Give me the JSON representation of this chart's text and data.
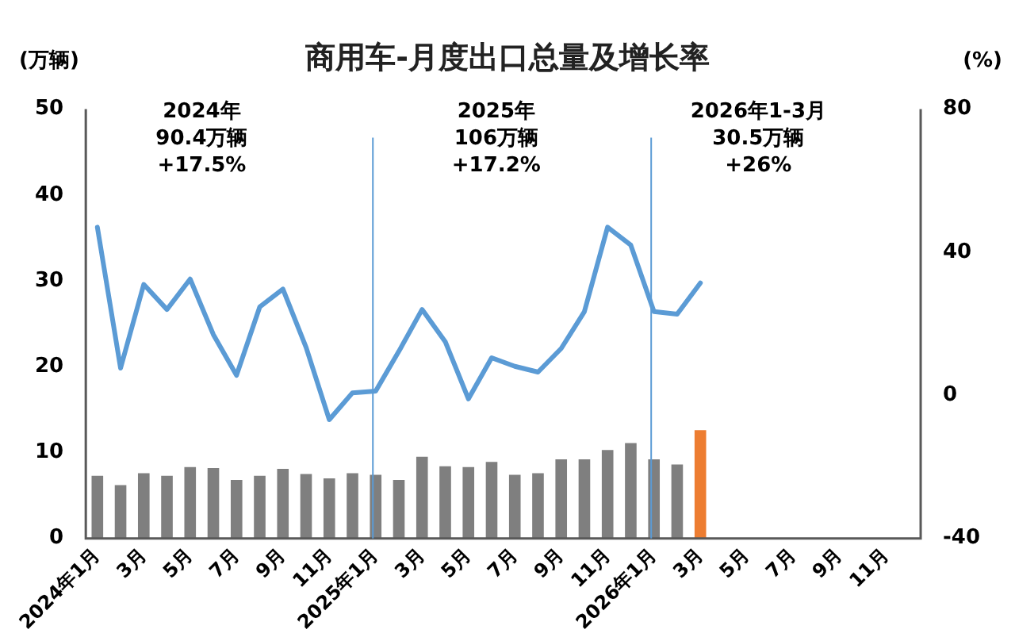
{
  "chart_data": {
    "type": "bar",
    "title": "商用车-月度出口总量及增长率",
    "ylabel": "(万辆)",
    "y2label": "(%)",
    "categories": [
      "2024年1月",
      null,
      "3月",
      null,
      "5月",
      null,
      "7月",
      null,
      "9月",
      null,
      "11月",
      null,
      "2025年1月",
      null,
      "3月",
      null,
      "5月",
      null,
      "7月",
      null,
      "9月",
      null,
      "11月",
      null,
      "2026年1月",
      null,
      "3月",
      null,
      "5月",
      null,
      "7月",
      null,
      "9月",
      null,
      "11月",
      null
    ],
    "series": [
      {
        "colors": [
          "#7f7f7f",
          "#7f7f7f",
          "#7f7f7f",
          "#7f7f7f",
          "#7f7f7f",
          "#7f7f7f",
          "#7f7f7f",
          "#7f7f7f",
          "#7f7f7f",
          "#7f7f7f",
          "#7f7f7f",
          "#7f7f7f",
          "#7f7f7f",
          "#7f7f7f",
          "#7f7f7f",
          "#7f7f7f",
          "#7f7f7f",
          "#7f7f7f",
          "#7f7f7f",
          "#7f7f7f",
          "#7f7f7f",
          "#7f7f7f",
          "#7f7f7f",
          "#7f7f7f",
          "#7f7f7f",
          "#7f7f7f",
          "#ed7d31",
          null,
          null,
          null,
          null,
          null,
          null,
          null,
          null,
          null
        ],
        "values": [
          7.3,
          6.2,
          7.6,
          7.3,
          8.3,
          8.2,
          6.8,
          7.3,
          8.1,
          7.5,
          7.0,
          7.6,
          7.4,
          6.8,
          9.5,
          8.4,
          8.3,
          8.9,
          7.4,
          7.6,
          9.2,
          9.2,
          10.3,
          11.1,
          9.2,
          8.6,
          12.6,
          null,
          null,
          null,
          null,
          null,
          null,
          null,
          null,
          null
        ]
      },
      {
        "type": "line",
        "axis": "y2",
        "color": "#5b9bd5",
        "values": [
          47,
          7.6,
          31,
          24,
          32.5,
          17,
          5.6,
          24.7,
          29.7,
          13.4,
          -6.8,
          0.7,
          1.2,
          12.3,
          24,
          15,
          -1,
          10.5,
          8.1,
          6.5,
          13.1,
          23.4,
          47,
          42,
          23.4,
          22.7,
          31.4,
          null,
          null,
          null,
          null,
          null,
          null,
          null,
          null,
          null
        ]
      }
    ],
    "ylim": [
      0,
      50
    ],
    "yticks": [
      0,
      10,
      20,
      30,
      40,
      50
    ],
    "y2lim": [
      -40,
      80
    ],
    "y2ticks": [
      -40,
      0,
      40,
      80
    ],
    "ref_lines": [
      {
        "axis": "x",
        "value": "2025年1月",
        "color": "#5b9bd5"
      },
      {
        "axis": "x",
        "value": "2026年1月",
        "color": "#5b9bd5"
      }
    ],
    "annotations": [
      "2024年\n90.4万辆\n+17.5%",
      "2025年\n106万辆\n+17.2%",
      "2026年1-3月\n30.5万辆\n+26%"
    ],
    "marker": "none",
    "grid": false,
    "legend": false
  }
}
